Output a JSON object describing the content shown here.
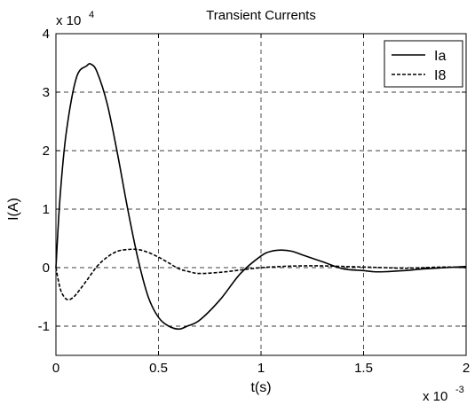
{
  "chart_data": {
    "type": "line",
    "title": "Transient Currents",
    "xlabel": "t(s)",
    "ylabel": "I(A)",
    "x_exponent": {
      "base": "x 10",
      "power": "-3"
    },
    "y_exponent": {
      "base": "x 10",
      "power": "4"
    },
    "xlim": [
      0,
      2
    ],
    "ylim": [
      -1.5,
      4
    ],
    "xticks": [
      0,
      0.5,
      1,
      1.5,
      2
    ],
    "xtick_labels": [
      "0",
      "0.5",
      "1",
      "1.5",
      "2"
    ],
    "yticks": [
      -1,
      0,
      1,
      2,
      3,
      4
    ],
    "ytick_labels": [
      "-1",
      "0",
      "1",
      "2",
      "3",
      "4"
    ],
    "grid": true,
    "legend_position": "top-right",
    "series": [
      {
        "name": "Ia",
        "style": "solid",
        "color": "#000000",
        "x": [
          0,
          0.02,
          0.05,
          0.1,
          0.15,
          0.17,
          0.2,
          0.25,
          0.3,
          0.35,
          0.4,
          0.45,
          0.5,
          0.55,
          0.6,
          0.64,
          0.7,
          0.8,
          0.9,
          1.0,
          1.05,
          1.1,
          1.15,
          1.2,
          1.3,
          1.4,
          1.5,
          1.55,
          1.6,
          1.7,
          1.8,
          1.9,
          2.0
        ],
        "y": [
          0,
          1.2,
          2.3,
          3.25,
          3.45,
          3.48,
          3.35,
          2.8,
          1.95,
          1.0,
          0.15,
          -0.5,
          -0.85,
          -1.0,
          -1.05,
          -1.0,
          -0.9,
          -0.55,
          -0.1,
          0.2,
          0.28,
          0.3,
          0.28,
          0.22,
          0.1,
          -0.02,
          -0.05,
          -0.07,
          -0.07,
          -0.05,
          -0.02,
          0.0,
          0.02
        ]
      },
      {
        "name": "I8",
        "style": "dashed",
        "color": "#000000",
        "x": [
          0,
          0.02,
          0.04,
          0.06,
          0.08,
          0.1,
          0.15,
          0.2,
          0.25,
          0.3,
          0.35,
          0.4,
          0.45,
          0.5,
          0.55,
          0.6,
          0.65,
          0.7,
          0.8,
          0.9,
          1.0,
          1.1,
          1.2,
          1.3,
          1.4,
          1.5,
          1.6,
          1.7,
          1.8,
          1.9,
          2.0
        ],
        "y": [
          0,
          -0.35,
          -0.5,
          -0.55,
          -0.52,
          -0.45,
          -0.22,
          0.02,
          0.18,
          0.28,
          0.31,
          0.31,
          0.26,
          0.18,
          0.08,
          -0.02,
          -0.07,
          -0.1,
          -0.08,
          -0.04,
          0.0,
          0.02,
          0.03,
          0.03,
          0.02,
          0.01,
          0.0,
          -0.01,
          0.0,
          0.01,
          0.0
        ]
      }
    ]
  }
}
